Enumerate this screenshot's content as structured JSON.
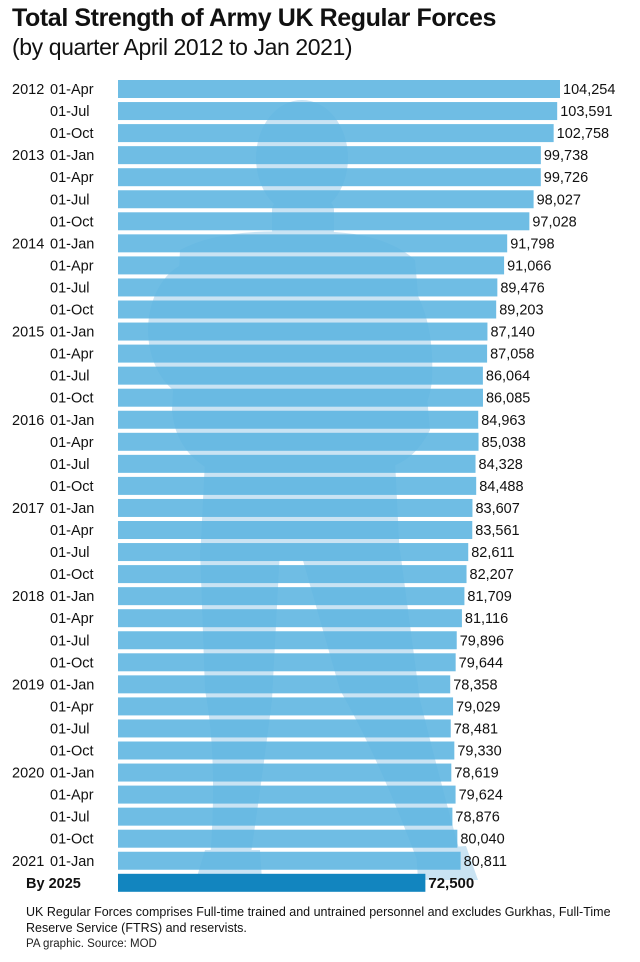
{
  "header": {
    "title": "Total Strength of Army UK Regular Forces",
    "subtitle": "(by quarter April 2012 to Jan 2021)"
  },
  "footer": {
    "note": "UK Regular Forces comprises Full-time trained and untrained personnel and excludes Gurkhas, Full-Time Reserve Service (FTRS) and reservists.",
    "source": "PA graphic. Source: MOD"
  },
  "colors": {
    "bar": "#5bb4e0",
    "highlight_bar": "#1285bf",
    "silhouette": "#c9e3f3"
  },
  "icons": {
    "silhouette": "soldier-silhouette-icon"
  },
  "chart_data": {
    "type": "bar",
    "orientation": "horizontal",
    "xlim": [
      0,
      104254
    ],
    "years": [
      "2012",
      "",
      "",
      "2013",
      "",
      "",
      "",
      "2014",
      "",
      "",
      "",
      "2015",
      "",
      "",
      "",
      "2016",
      "",
      "",
      "",
      "2017",
      "",
      "",
      "",
      "2018",
      "",
      "",
      "",
      "2019",
      "",
      "",
      "",
      "2020",
      "",
      "",
      "",
      "2021",
      ""
    ],
    "categories": [
      "01-Apr",
      "01-Jul",
      "01-Oct",
      "01-Jan",
      "01-Apr",
      "01-Jul",
      "01-Oct",
      "01-Jan",
      "01-Apr",
      "01-Jul",
      "01-Oct",
      "01-Jan",
      "01-Apr",
      "01-Jul",
      "01-Oct",
      "01-Jan",
      "01-Apr",
      "01-Jul",
      "01-Oct",
      "01-Jan",
      "01-Apr",
      "01-Jul",
      "01-Oct",
      "01-Jan",
      "01-Apr",
      "01-Jul",
      "01-Oct",
      "01-Jan",
      "01-Apr",
      "01-Jul",
      "01-Oct",
      "01-Jan",
      "01-Apr",
      "01-Jul",
      "01-Oct",
      "01-Jan",
      "By 2025"
    ],
    "values": [
      104254,
      103591,
      102758,
      99738,
      99726,
      98027,
      97028,
      91798,
      91066,
      89476,
      89203,
      87140,
      87058,
      86064,
      86085,
      84963,
      85038,
      84328,
      84488,
      83607,
      83561,
      82611,
      82207,
      81709,
      81116,
      79896,
      79644,
      78358,
      79029,
      78481,
      79330,
      78619,
      79624,
      78876,
      80040,
      80811,
      72500
    ],
    "value_labels": [
      "104,254",
      "103,591",
      "102,758",
      "99,738",
      "99,726",
      "98,027",
      "97,028",
      "91,798",
      "91,066",
      "89,476",
      "89,203",
      "87,140",
      "87,058",
      "86,064",
      "86,085",
      "84,963",
      "85,038",
      "84,328",
      "84,488",
      "83,607",
      "83,561",
      "82,611",
      "82,207",
      "81,709",
      "81,116",
      "79,896",
      "79,644",
      "78,358",
      "79,029",
      "78,481",
      "79,330",
      "78,619",
      "79,624",
      "78,876",
      "80,040",
      "80,811",
      "72,500"
    ],
    "highlight_index": 36
  }
}
